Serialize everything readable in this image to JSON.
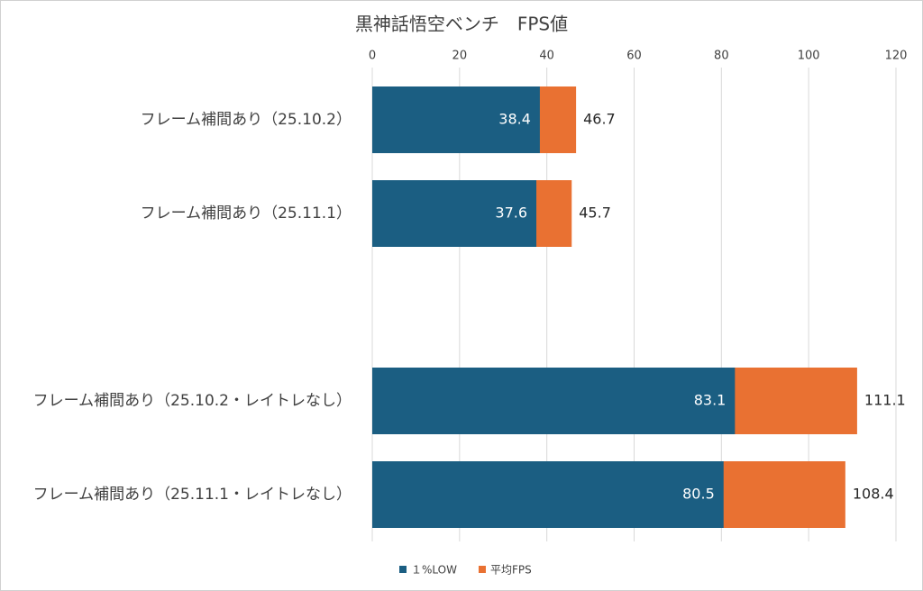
{
  "chart_data": {
    "type": "overlap-hbar",
    "title": "黒神話悟空ベンチ　FPS値",
    "categories": [
      "フレーム補間あり（25.10.2）",
      "フレーム補間あり（25.11.1）",
      null,
      "フレーム補間あり（25.10.2・レイトレなし）",
      "フレーム補間あり（25.11.1・レイトレなし）"
    ],
    "series": [
      {
        "name": "１%LOW",
        "color": "#1b5e82",
        "values": [
          38.4,
          37.6,
          null,
          83.1,
          80.5
        ]
      },
      {
        "name": "平均FPS",
        "color": "#e97132",
        "values": [
          46.7,
          45.7,
          null,
          111.1,
          108.4
        ]
      }
    ],
    "xlim": [
      0,
      120
    ],
    "xticks": [
      0,
      20,
      40,
      60,
      80,
      100,
      120
    ],
    "grid": true,
    "legend": "bottom"
  }
}
